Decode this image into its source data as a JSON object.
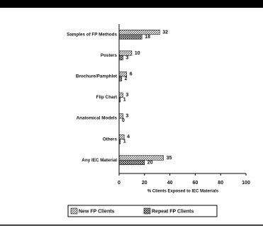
{
  "chart_data": {
    "type": "bar",
    "orientation": "horizontal",
    "categories": [
      "Samples of FP Methods",
      "Posters",
      "Brochure/Pamphlet",
      "Flip Chart",
      "Anatomical Models",
      "Others",
      "Any IEC Material"
    ],
    "series": [
      {
        "name": "New FP Clients",
        "color": "#111111",
        "values": [
          32,
          10,
          6,
          3,
          3,
          4,
          35
        ]
      },
      {
        "name": "Repeat FP Clients",
        "color": "#111111",
        "values": [
          18,
          3,
          2,
          1,
          0,
          1,
          20
        ]
      }
    ],
    "xlabel": "% Clients Exposed to IEC Materials",
    "xlim": [
      0,
      100
    ],
    "xticks": [
      0,
      20,
      40,
      60,
      80,
      100
    ]
  }
}
